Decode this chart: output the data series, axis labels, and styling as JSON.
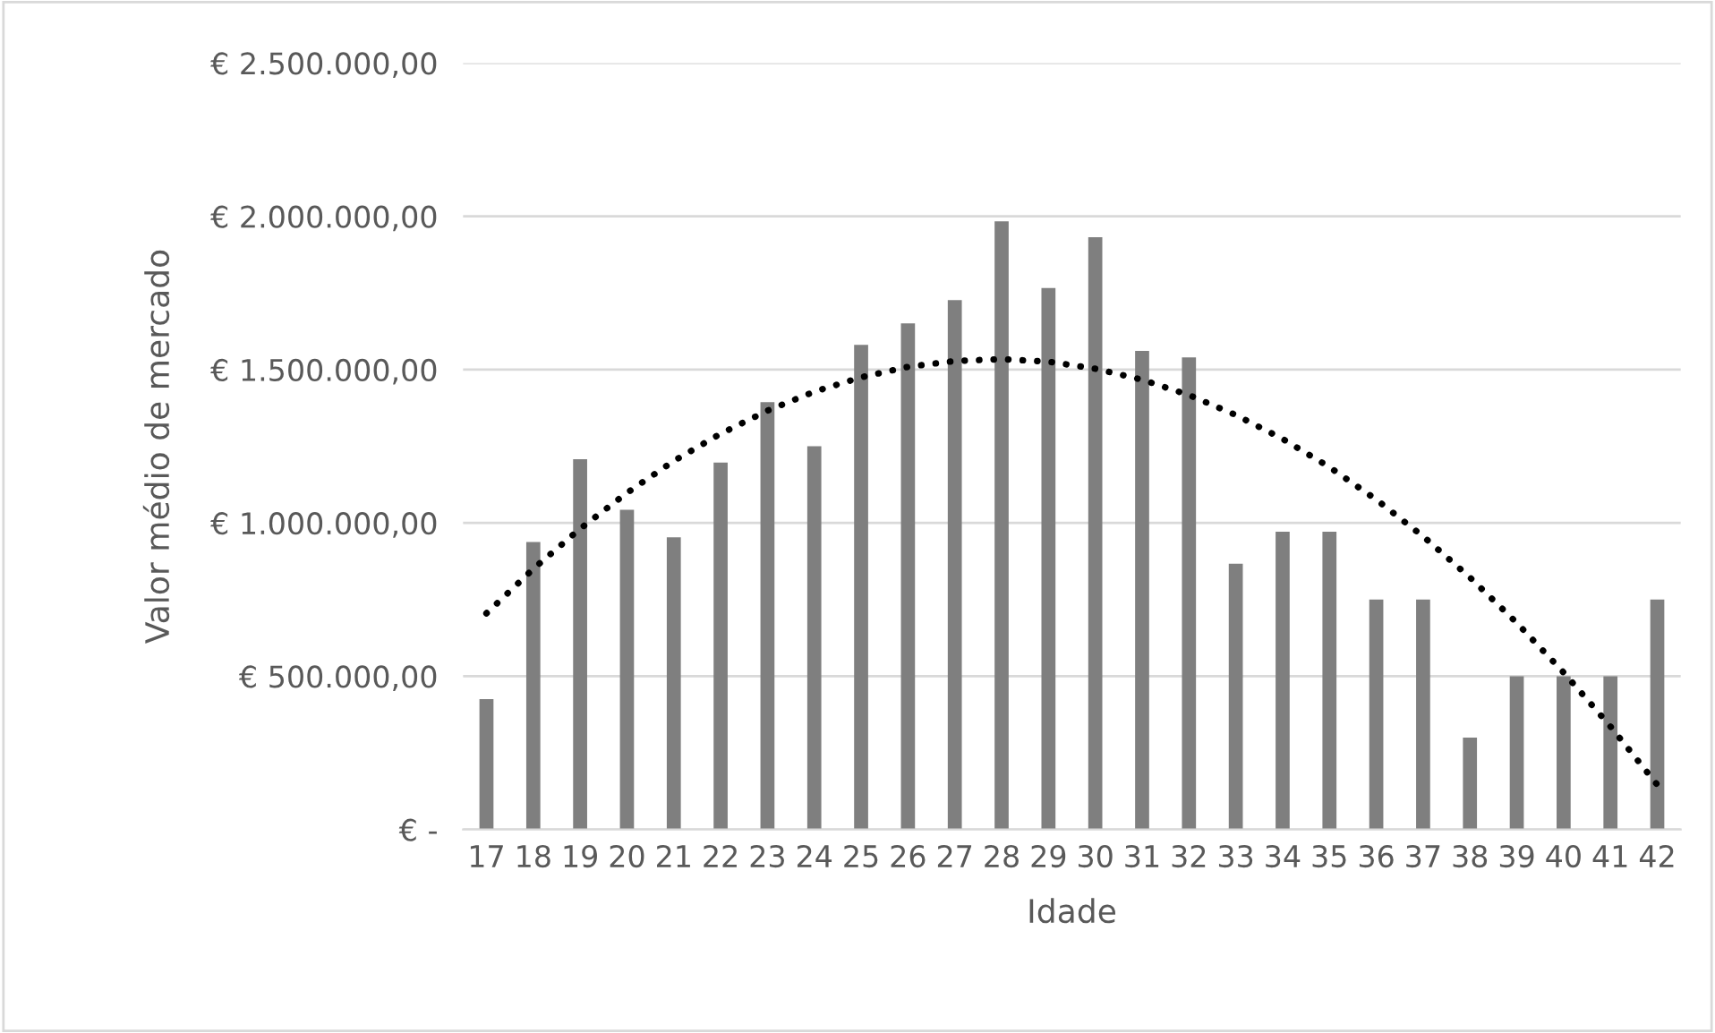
{
  "chart_data": {
    "type": "bar",
    "xlabel": "Idade",
    "ylabel": "Valor médio de mercado",
    "categories": [
      "17",
      "18",
      "19",
      "20",
      "21",
      "22",
      "23",
      "24",
      "25",
      "26",
      "27",
      "28",
      "29",
      "30",
      "31",
      "32",
      "33",
      "34",
      "35",
      "36",
      "37",
      "38",
      "39",
      "40",
      "41",
      "42"
    ],
    "series": [
      {
        "color": "#7f7f7f",
        "values": [
          425000,
          938000,
          1208000,
          1043000,
          953000,
          1197000,
          1394000,
          1250000,
          1581000,
          1651000,
          1727000,
          1984000,
          1766000,
          1932000,
          1561000,
          1540000,
          867000,
          971000,
          971000,
          750000,
          750000,
          300000,
          500000,
          500000,
          500000,
          750000
        ]
      },
      {
        "type": "line",
        "color": "#000000",
        "line_style": "dotted",
        "x": [
          "17",
          "18",
          "19",
          "20",
          "21",
          "22",
          "23",
          "24",
          "25",
          "26",
          "27",
          "28",
          "29",
          "30",
          "31",
          "32",
          "33",
          "34",
          "35",
          "36",
          "37",
          "38",
          "39",
          "40",
          "41",
          "42"
        ],
        "values": [
          705000,
          850000,
          981000,
          1098000,
          1202000,
          1291000,
          1366000,
          1428000,
          1475000,
          1509000,
          1528000,
          1534000,
          1526000,
          1503000,
          1467000,
          1417000,
          1352000,
          1274000,
          1182000,
          1076000,
          956000,
          822000,
          674000,
          512000,
          336000,
          146000
        ]
      }
    ],
    "ylim": [
      0,
      2500000
    ],
    "yticks": [
      {
        "value": 0,
        "label": "€ -"
      },
      {
        "value": 500000,
        "label": "€ 500.000,00"
      },
      {
        "value": 1000000,
        "label": "€ 1.000.000,00"
      },
      {
        "value": 1500000,
        "label": "€ 1.500.000,00"
      },
      {
        "value": 2000000,
        "label": "€ 2.000.000,00"
      },
      {
        "value": 2500000,
        "label": "€ 2.500.000,00"
      }
    ],
    "grid": "y",
    "legend": false
  }
}
